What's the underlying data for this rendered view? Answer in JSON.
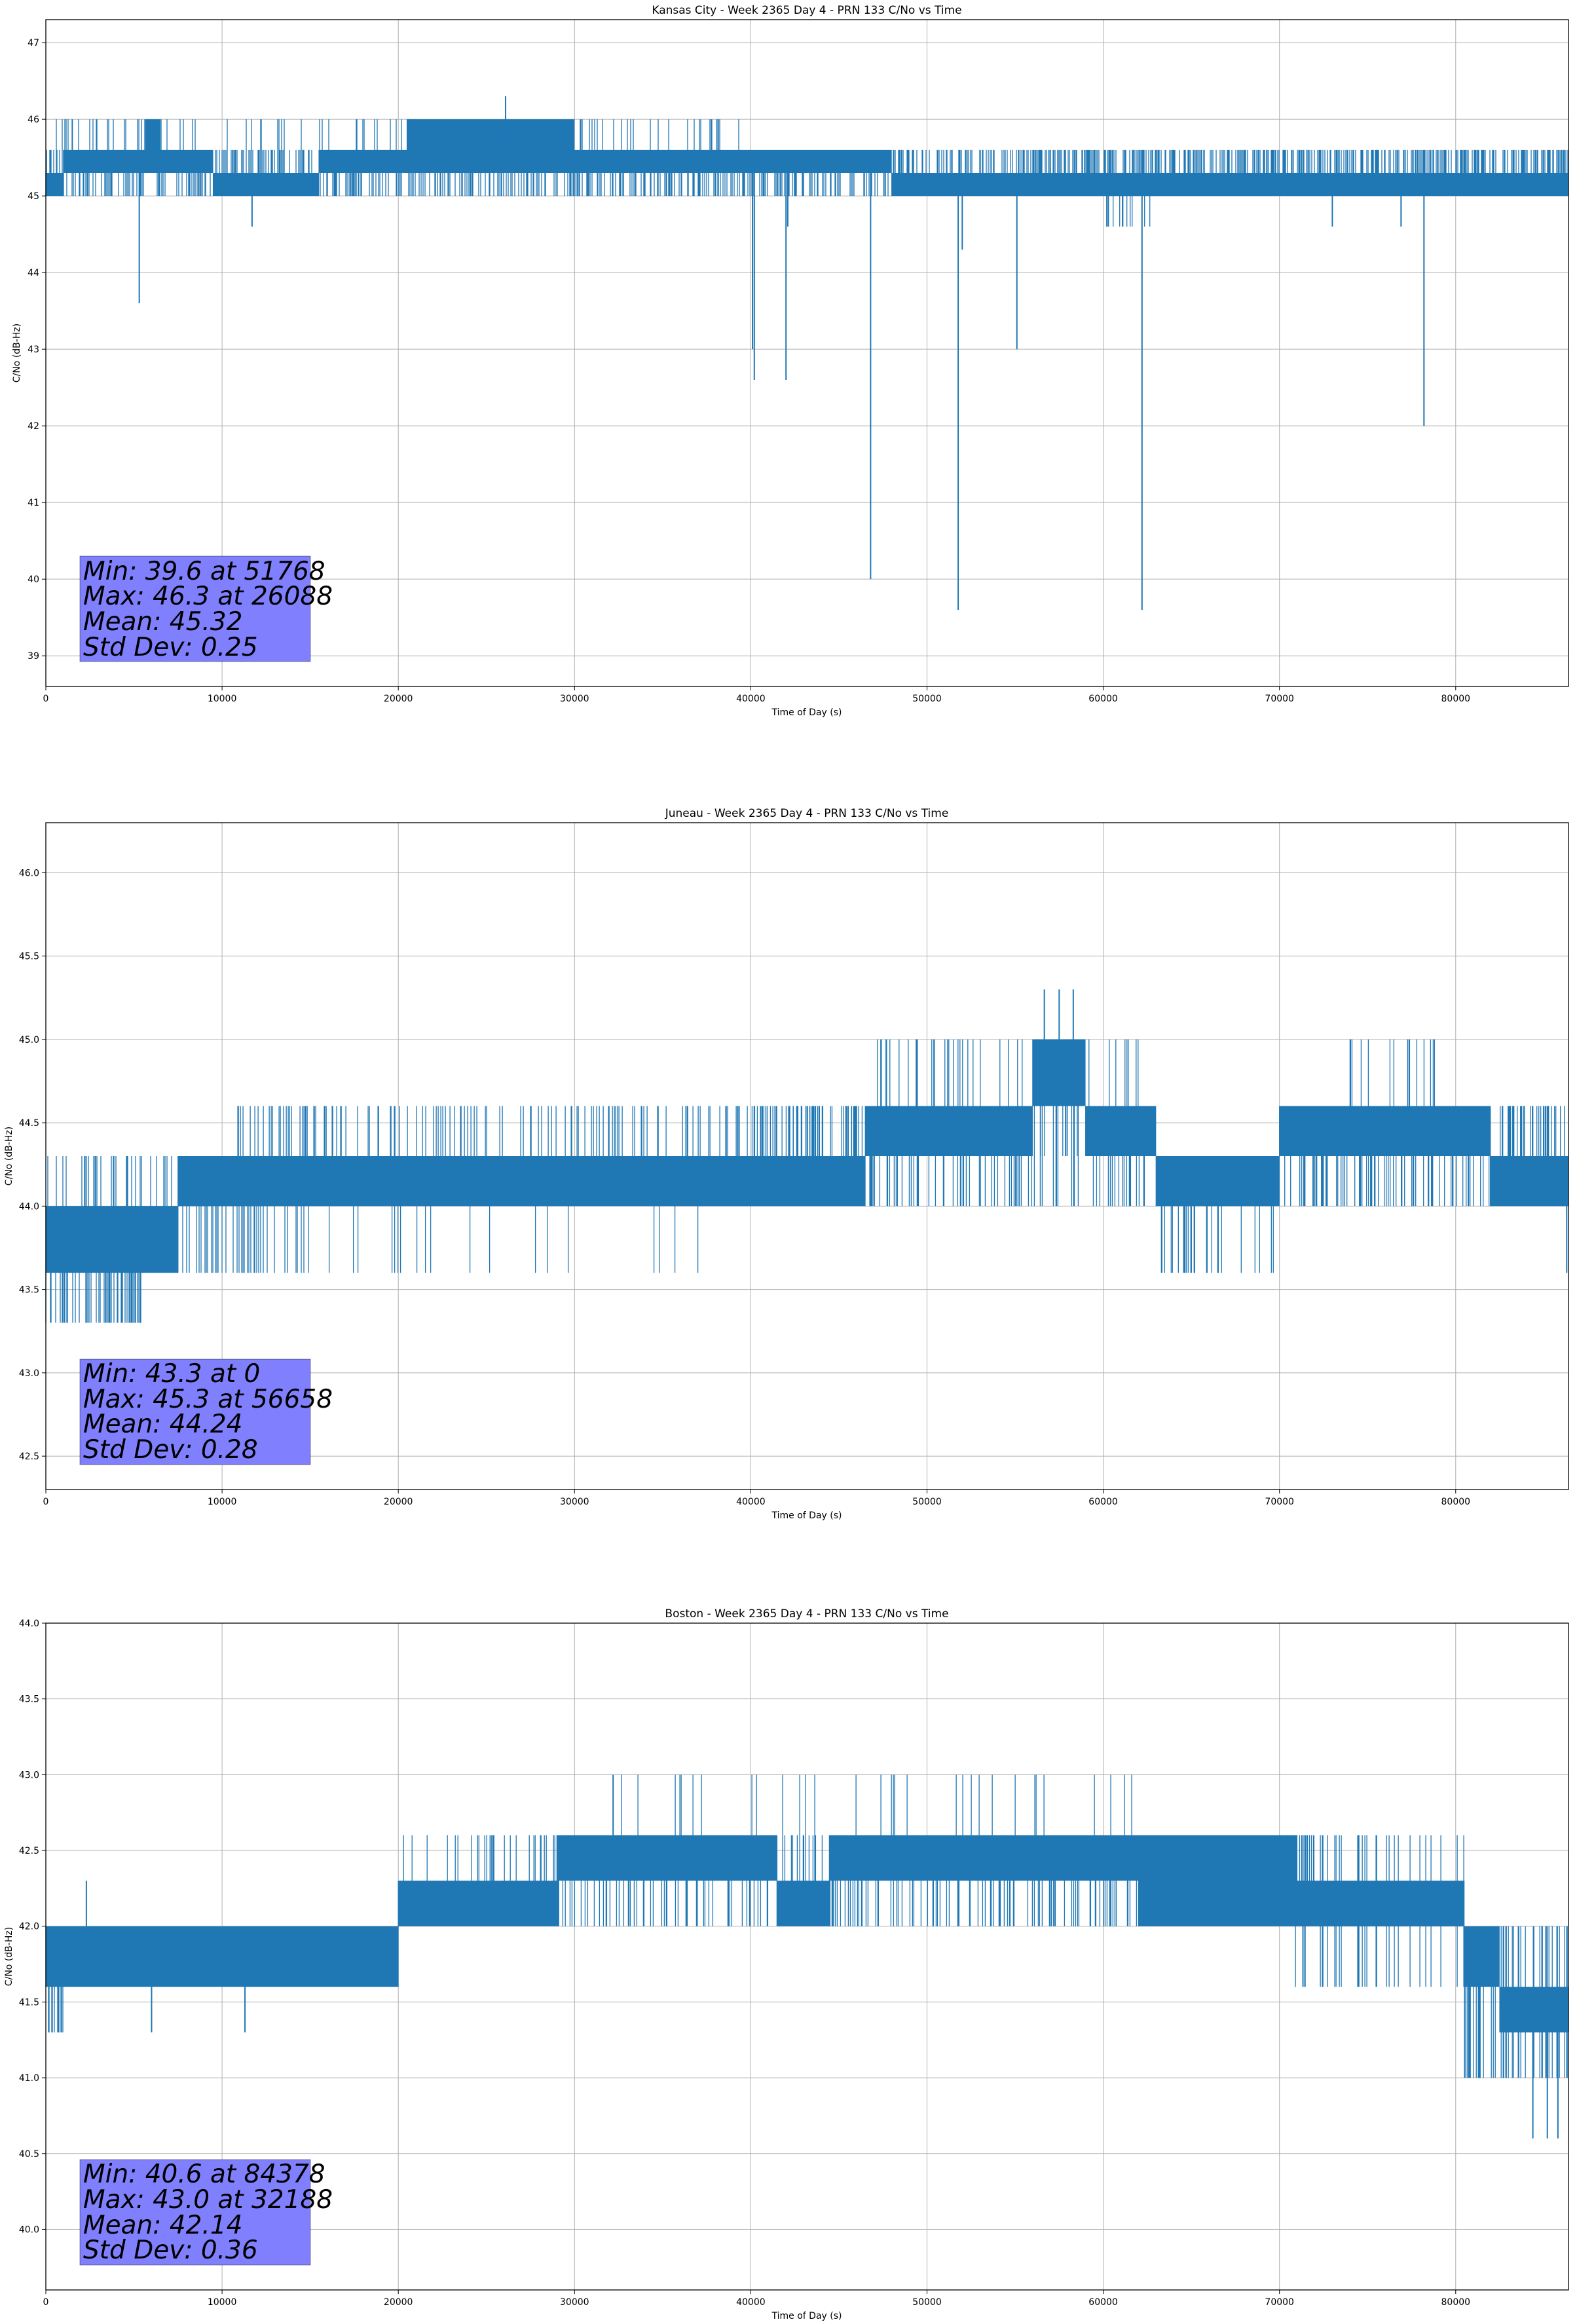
{
  "colors": {
    "line": "#1f77b4",
    "grid": "#b0b0b0",
    "statsbox": "#8080ff"
  },
  "chart_data": [
    {
      "type": "line",
      "title": "Kansas City - Week 2365 Day 4 - PRN 133 C/No vs Time",
      "xlabel": "Time of Day (s)",
      "ylabel": "C/No (dB-Hz)",
      "xlim": [
        0,
        86400
      ],
      "ylim": [
        38.6,
        47.3
      ],
      "xticks": [
        0,
        10000,
        20000,
        30000,
        40000,
        50000,
        60000,
        70000,
        80000
      ],
      "yticks": [
        39,
        40,
        41,
        42,
        43,
        44,
        45,
        46,
        47
      ],
      "ytick_labels": [
        "39",
        "40",
        "41",
        "42",
        "43",
        "44",
        "45",
        "46",
        "47"
      ],
      "grid": true,
      "series": [
        {
          "name": "C/No",
          "segments": [
            {
              "x0": 0,
              "x1": 1000,
              "lo": 45.0,
              "hi": 45.3
            },
            {
              "x0": 1000,
              "x1": 9500,
              "lo": 45.3,
              "hi": 45.6
            },
            {
              "x0": 5700,
              "x1": 6500,
              "lo": 45.6,
              "hi": 46.0
            },
            {
              "x0": 9500,
              "x1": 15500,
              "lo": 45.0,
              "hi": 45.3
            },
            {
              "x0": 15500,
              "x1": 38500,
              "lo": 45.3,
              "hi": 45.6
            },
            {
              "x0": 20500,
              "x1": 30000,
              "lo": 45.6,
              "hi": 46.0
            },
            {
              "x0": 38500,
              "x1": 48000,
              "lo": 45.3,
              "hi": 45.6
            },
            {
              "x0": 48000,
              "x1": 86400,
              "lo": 45.0,
              "hi": 45.3
            }
          ],
          "noise": [
            {
              "x0": 0,
              "x1": 86400,
              "lo": 45.0,
              "hi": 45.6,
              "density": 0.8
            },
            {
              "x0": 0,
              "x1": 40000,
              "lo": 45.3,
              "hi": 46.0,
              "density": 0.3
            },
            {
              "x0": 55000,
              "x1": 86400,
              "lo": 45.0,
              "hi": 45.6,
              "density": 0.6
            },
            {
              "x0": 59000,
              "x1": 63000,
              "lo": 44.6,
              "hi": 45.3,
              "density": 0.4
            }
          ],
          "spikes": [
            {
              "x": 1500,
              "y": 46.0
            },
            {
              "x": 5300,
              "y": 43.6
            },
            {
              "x": 11700,
              "y": 44.6
            },
            {
              "x": 20800,
              "y": 46.0
            },
            {
              "x": 26088,
              "y": 46.3
            },
            {
              "x": 40200,
              "y": 42.6
            },
            {
              "x": 40100,
              "y": 43.0
            },
            {
              "x": 42000,
              "y": 42.6
            },
            {
              "x": 42100,
              "y": 44.6
            },
            {
              "x": 46800,
              "y": 40.0
            },
            {
              "x": 51768,
              "y": 39.6
            },
            {
              "x": 52000,
              "y": 44.3
            },
            {
              "x": 55100,
              "y": 43.0
            },
            {
              "x": 62200,
              "y": 39.6
            },
            {
              "x": 73000,
              "y": 44.6
            },
            {
              "x": 76900,
              "y": 44.6
            },
            {
              "x": 78200,
              "y": 42.0
            }
          ]
        }
      ],
      "stats": [
        "Min: 39.6 at 51768",
        "Max: 46.3 at 26088",
        "Mean: 45.32",
        "Std Dev: 0.25"
      ]
    },
    {
      "type": "line",
      "title": "Juneau - Week 2365 Day 4 - PRN 133 C/No vs Time",
      "xlabel": "Time of Day (s)",
      "ylabel": "C/No (dB-Hz)",
      "xlim": [
        0,
        86400
      ],
      "ylim": [
        42.3,
        46.3
      ],
      "xticks": [
        0,
        10000,
        20000,
        30000,
        40000,
        50000,
        60000,
        70000,
        80000
      ],
      "yticks": [
        42.5,
        43.0,
        43.5,
        44.0,
        44.5,
        45.0,
        45.5,
        46.0
      ],
      "ytick_labels": [
        "42.5",
        "43.0",
        "43.5",
        "44.0",
        "44.5",
        "45.0",
        "45.5",
        "46.0"
      ],
      "grid": true,
      "series": [
        {
          "name": "C/No",
          "segments": [
            {
              "x0": 0,
              "x1": 2000,
              "lo": 43.6,
              "hi": 44.0
            },
            {
              "x0": 2000,
              "x1": 7500,
              "lo": 43.6,
              "hi": 44.0
            },
            {
              "x0": 7500,
              "x1": 33000,
              "lo": 44.0,
              "hi": 44.3
            },
            {
              "x0": 33000,
              "x1": 46500,
              "lo": 44.0,
              "hi": 44.3
            },
            {
              "x0": 46500,
              "x1": 56000,
              "lo": 44.3,
              "hi": 44.6
            },
            {
              "x0": 56000,
              "x1": 59000,
              "lo": 44.6,
              "hi": 45.0
            },
            {
              "x0": 59000,
              "x1": 63000,
              "lo": 44.3,
              "hi": 44.6
            },
            {
              "x0": 63000,
              "x1": 70000,
              "lo": 44.0,
              "hi": 44.3
            },
            {
              "x0": 70000,
              "x1": 82000,
              "lo": 44.3,
              "hi": 44.6
            },
            {
              "x0": 82000,
              "x1": 86400,
              "lo": 44.0,
              "hi": 44.3
            }
          ],
          "noise": [
            {
              "x0": 0,
              "x1": 5500,
              "lo": 43.3,
              "hi": 44.0,
              "density": 0.9
            },
            {
              "x0": 0,
              "x1": 15000,
              "lo": 43.6,
              "hi": 44.3,
              "density": 0.6
            },
            {
              "x0": 10000,
              "x1": 47000,
              "lo": 44.0,
              "hi": 44.6,
              "density": 0.5
            },
            {
              "x0": 15000,
              "x1": 40000,
              "lo": 43.6,
              "hi": 44.3,
              "density": 0.08
            },
            {
              "x0": 40000,
              "x1": 63000,
              "lo": 44.0,
              "hi": 44.6,
              "density": 0.5
            },
            {
              "x0": 47000,
              "x1": 62000,
              "lo": 44.3,
              "hi": 45.0,
              "density": 0.3
            },
            {
              "x0": 63000,
              "x1": 70000,
              "lo": 43.6,
              "hi": 44.3,
              "density": 0.4
            },
            {
              "x0": 70000,
              "x1": 86400,
              "lo": 44.0,
              "hi": 44.6,
              "density": 0.7
            },
            {
              "x0": 73000,
              "x1": 80000,
              "lo": 44.3,
              "hi": 45.0,
              "density": 0.25
            }
          ],
          "spikes": [
            {
              "x": 56658,
              "y": 45.3
            },
            {
              "x": 57500,
              "y": 45.3
            },
            {
              "x": 58300,
              "y": 45.3
            },
            {
              "x": 86300,
              "y": 43.6
            }
          ]
        }
      ],
      "stats": [
        "Min: 43.3 at 0",
        "Max: 45.3 at 56658",
        "Mean: 44.24",
        "Std Dev: 0.28"
      ]
    },
    {
      "type": "line",
      "title": "Boston - Week 2365 Day 4 - PRN 133 C/No vs Time",
      "xlabel": "Time of Day (s)",
      "ylabel": "C/No (dB-Hz)",
      "xlim": [
        0,
        86400
      ],
      "ylim": [
        39.6,
        44.0
      ],
      "xticks": [
        0,
        10000,
        20000,
        30000,
        40000,
        50000,
        60000,
        70000,
        80000
      ],
      "yticks": [
        40.0,
        40.5,
        41.0,
        41.5,
        42.0,
        42.5,
        43.0,
        43.5,
        44.0
      ],
      "ytick_labels": [
        "40.0",
        "40.5",
        "41.0",
        "41.5",
        "42.0",
        "42.5",
        "43.0",
        "43.5",
        "44.0"
      ],
      "grid": true,
      "series": [
        {
          "name": "C/No",
          "segments": [
            {
              "x0": 0,
              "x1": 20000,
              "lo": 41.6,
              "hi": 42.0
            },
            {
              "x0": 20000,
              "x1": 29000,
              "lo": 42.0,
              "hi": 42.3
            },
            {
              "x0": 29000,
              "x1": 41500,
              "lo": 42.3,
              "hi": 42.6
            },
            {
              "x0": 41500,
              "x1": 44500,
              "lo": 42.0,
              "hi": 42.3
            },
            {
              "x0": 44500,
              "x1": 58000,
              "lo": 42.3,
              "hi": 42.6
            },
            {
              "x0": 58000,
              "x1": 62000,
              "lo": 42.3,
              "hi": 42.6
            },
            {
              "x0": 62000,
              "x1": 71000,
              "lo": 42.0,
              "hi": 42.6
            },
            {
              "x0": 71000,
              "x1": 80500,
              "lo": 42.0,
              "hi": 42.3
            },
            {
              "x0": 80500,
              "x1": 82500,
              "lo": 41.6,
              "hi": 42.0
            },
            {
              "x0": 82500,
              "x1": 86400,
              "lo": 41.3,
              "hi": 41.6
            }
          ],
          "noise": [
            {
              "x0": 0,
              "x1": 20000,
              "lo": 41.6,
              "hi": 42.0,
              "density": 0.6
            },
            {
              "x0": 0,
              "x1": 1000,
              "lo": 41.3,
              "hi": 42.0,
              "density": 0.8
            },
            {
              "x0": 20000,
              "x1": 30000,
              "lo": 42.0,
              "hi": 42.6,
              "density": 0.3
            },
            {
              "x0": 29000,
              "x1": 72000,
              "lo": 42.0,
              "hi": 42.6,
              "density": 0.5
            },
            {
              "x0": 32000,
              "x1": 62000,
              "lo": 42.3,
              "hi": 43.0,
              "density": 0.12
            },
            {
              "x0": 70500,
              "x1": 80500,
              "lo": 41.6,
              "hi": 42.6,
              "density": 0.4
            },
            {
              "x0": 80500,
              "x1": 86400,
              "lo": 41.0,
              "hi": 42.0,
              "density": 0.8
            }
          ],
          "spikes": [
            {
              "x": 6000,
              "y": 41.3
            },
            {
              "x": 11300,
              "y": 41.3
            },
            {
              "x": 2300,
              "y": 42.3
            },
            {
              "x": 32188,
              "y": 43.0
            },
            {
              "x": 84378,
              "y": 40.6
            },
            {
              "x": 85200,
              "y": 40.6
            },
            {
              "x": 85800,
              "y": 40.6
            }
          ]
        }
      ],
      "stats": [
        "Min: 40.6 at 84378",
        "Max: 43.0 at 32188",
        "Mean: 42.14",
        "Std Dev: 0.36"
      ]
    }
  ]
}
